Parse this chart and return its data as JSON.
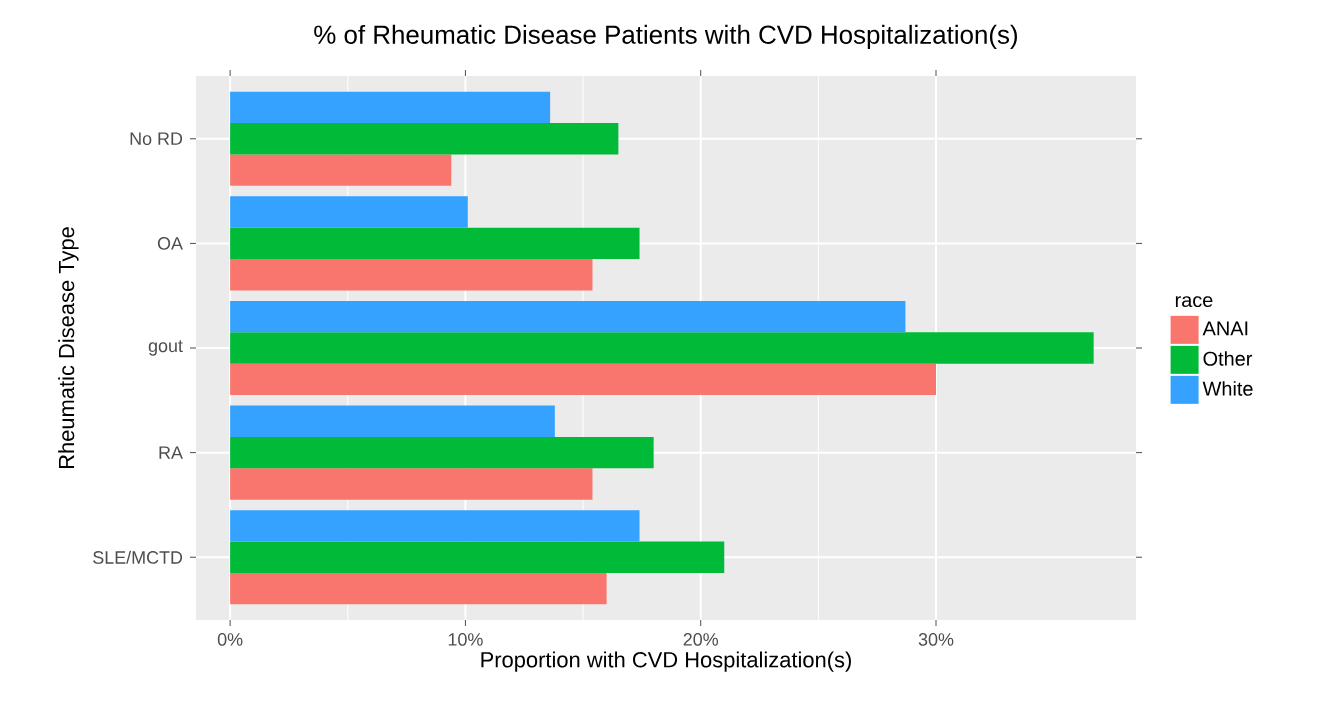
{
  "chart_data": {
    "type": "bar",
    "orientation": "horizontal",
    "title": "% of Rheumatic Disease Patients with CVD Hospitalization(s)",
    "xlabel": "Proportion with CVD Hospitalization(s)",
    "ylabel": "Rheumatic Disease Type",
    "legend_title": "race",
    "categories": [
      "No RD",
      "OA",
      "gout",
      "RA",
      "SLE/MCTD"
    ],
    "series": [
      {
        "name": "ANAI",
        "color": "#f8766d",
        "values": [
          9.4,
          15.4,
          30.0,
          15.4,
          16.0
        ]
      },
      {
        "name": "Other",
        "color": "#00ba38",
        "values": [
          16.5,
          17.4,
          36.7,
          18.0,
          21.0
        ]
      },
      {
        "name": "White",
        "color": "#35a2ff",
        "values": [
          13.6,
          10.1,
          28.7,
          13.8,
          17.4
        ]
      }
    ],
    "xlim": [
      -1.45,
      38.5
    ],
    "xticks": [
      {
        "value": 0,
        "label": "0%"
      },
      {
        "value": 10,
        "label": "10%"
      },
      {
        "value": 20,
        "label": "20%"
      },
      {
        "value": 30,
        "label": "30%"
      }
    ],
    "grid": true,
    "legend": "right"
  }
}
